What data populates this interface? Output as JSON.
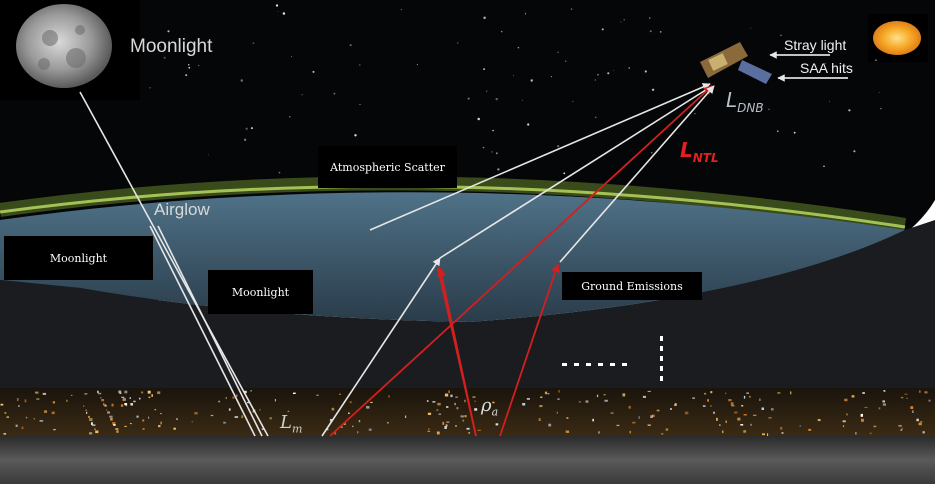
{
  "labels": {
    "moonlight_top": "Moonlight",
    "stray_light": "Stray light",
    "saa_hits": "SAA hits",
    "airglow": "Airglow",
    "l_dnb": {
      "main": "L",
      "sub": "DNB"
    },
    "l_ntl": {
      "main": "L",
      "sub": "NTL"
    },
    "l_m": {
      "main": "L",
      "sub": "m"
    },
    "rho_a": {
      "main": "ρ",
      "sub": "a"
    }
  },
  "boxes": {
    "atmospheric_scatter": "Atmospheric Scatter",
    "moonlight_left": "Moonlight",
    "moonlight_mid": "Moonlight",
    "ground_emissions": "Ground Emissions"
  },
  "colors": {
    "sky": "#050608",
    "airglow": "#9ccf3c",
    "atmosphere_blue": "#3d5a70",
    "city_lights": "#e6a23c",
    "ground": "#4a4a4a",
    "ray_white": "#e6e6e6",
    "ray_red": "#d21f1f",
    "ntl_label": "#e41f1f"
  }
}
